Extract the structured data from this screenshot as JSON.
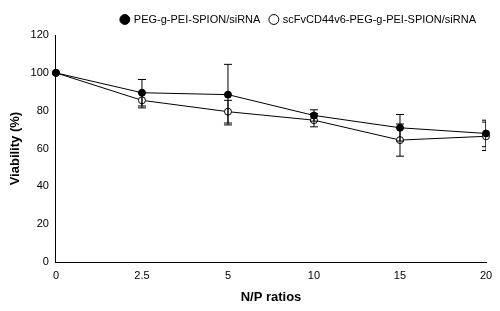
{
  "chart_data": {
    "type": "line",
    "x_label": "N/P ratios",
    "y_label": "Viability (%)",
    "categories": [
      "0",
      "2.5",
      "5",
      "10",
      "15",
      "20"
    ],
    "series": [
      {
        "name": "PEG-g-PEI-SPION/siRNA",
        "color": "#000000",
        "marker": "circle",
        "values": [
          100,
          89.5,
          88.5,
          77.5,
          71,
          68
        ],
        "errors": [
          0,
          7,
          16,
          3,
          7,
          7
        ]
      },
      {
        "name": "scFvCD44v6-PEG-g-PEI-SPION/siRNA",
        "color": "#000000",
        "marker": "open_circle",
        "values": [
          100,
          85.5,
          79.5,
          75,
          64.5,
          66.5
        ],
        "errors": [
          0,
          4,
          6,
          3.5,
          8.5,
          7.5
        ]
      }
    ],
    "ylim": [
      0,
      120
    ],
    "yticks": [
      0,
      20,
      40,
      60,
      80,
      100,
      120
    ],
    "grid": false,
    "legend": "top-right"
  }
}
